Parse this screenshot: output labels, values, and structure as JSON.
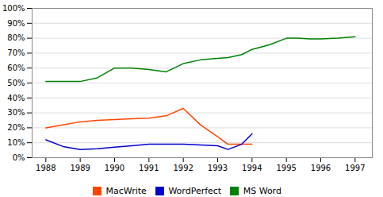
{
  "chart_data": {
    "type": "line",
    "x": [
      1988,
      1988.5,
      1989,
      1989.5,
      1990,
      1990.5,
      1991,
      1991.5,
      1992,
      1992.5,
      1993,
      1993.3,
      1993.7,
      1994,
      1994.5,
      1995,
      1995.3,
      1995.7,
      1996,
      1996.5,
      1997
    ],
    "series": [
      {
        "name": "MacWrite",
        "color": "#FF4500",
        "values": [
          0.2,
          0.22,
          0.24,
          0.25,
          0.255,
          0.26,
          0.265,
          0.28,
          0.33,
          0.22,
          0.14,
          0.09,
          0.09,
          0.09,
          null,
          null,
          null,
          null,
          null,
          null,
          null
        ]
      },
      {
        "name": "WordPerfect",
        "color": "#0000CC",
        "values": [
          0.12,
          0.075,
          0.055,
          0.06,
          0.07,
          0.08,
          0.09,
          0.09,
          0.09,
          0.085,
          0.08,
          0.055,
          0.09,
          0.16,
          null,
          null,
          null,
          null,
          null,
          null,
          null
        ]
      },
      {
        "name": "MS Word",
        "color": "#008000",
        "values": [
          0.51,
          0.51,
          0.51,
          0.535,
          0.6,
          0.6,
          0.59,
          0.575,
          0.63,
          0.655,
          0.665,
          0.67,
          0.69,
          0.725,
          0.755,
          0.8,
          0.8,
          0.795,
          0.795,
          0.8,
          0.81
        ]
      }
    ],
    "xlim": [
      1987.6,
      1997.5
    ],
    "xticks": [
      1988,
      1989,
      1990,
      1991,
      1992,
      1993,
      1994,
      1995,
      1996,
      1997
    ],
    "ylim": [
      0,
      1.0
    ],
    "yticks": [
      {
        "value": 0.0,
        "label": "0%"
      },
      {
        "value": 0.1,
        "label": "10%"
      },
      {
        "value": 0.2,
        "label": "20%"
      },
      {
        "value": 0.3,
        "label": "30%"
      },
      {
        "value": 0.4,
        "label": "40%"
      },
      {
        "value": 0.5,
        "label": "50%"
      },
      {
        "value": 0.6,
        "label": "60%"
      },
      {
        "value": 0.7,
        "label": "70%"
      },
      {
        "value": 0.8,
        "label": "80%"
      },
      {
        "value": 0.9,
        "label": "90%"
      },
      {
        "value": 1.0,
        "label": "100%"
      }
    ],
    "grid": true,
    "legend": "bottom"
  }
}
